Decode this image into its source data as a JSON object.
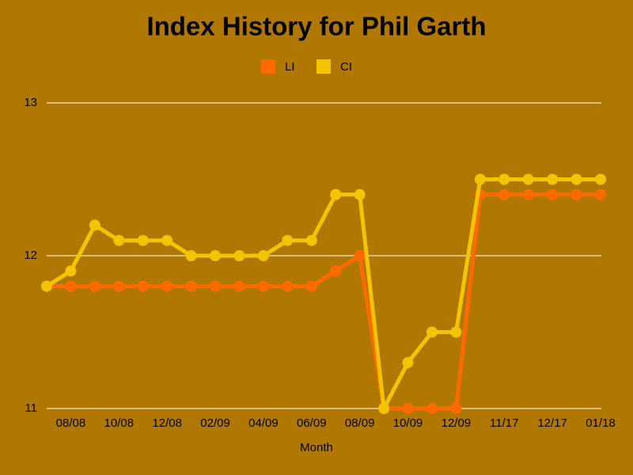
{
  "chart_data": {
    "type": "line",
    "title": "Index History for Phil Garth",
    "x_label": "Month",
    "categories": [
      null,
      "08/08",
      null,
      "10/08",
      null,
      "12/08",
      null,
      "02/09",
      null,
      "04/09",
      null,
      "06/09",
      null,
      "08/09",
      null,
      "10/09",
      null,
      "12/09",
      null,
      "11/17",
      null,
      "12/17",
      null,
      "01/18"
    ],
    "series": [
      {
        "name": "LI",
        "color": "#ff6a00",
        "values": [
          11.8,
          11.8,
          11.8,
          11.8,
          11.8,
          11.8,
          11.8,
          11.8,
          11.8,
          11.8,
          11.8,
          11.8,
          11.9,
          12.0,
          11.0,
          11.0,
          11.0,
          11.0,
          12.4,
          12.4,
          12.4,
          12.4,
          12.4,
          12.4
        ]
      },
      {
        "name": "CI",
        "color": "#f5c400",
        "values": [
          11.8,
          11.9,
          12.2,
          12.1,
          12.1,
          12.1,
          12.0,
          12.0,
          12.0,
          12.0,
          12.1,
          12.1,
          12.4,
          12.4,
          11.0,
          11.3,
          11.5,
          11.5,
          12.5,
          12.5,
          12.5,
          12.5,
          12.5,
          12.5
        ]
      }
    ],
    "ylim": [
      11,
      13
    ],
    "yticks": [
      11,
      12,
      13
    ],
    "grid": true
  }
}
